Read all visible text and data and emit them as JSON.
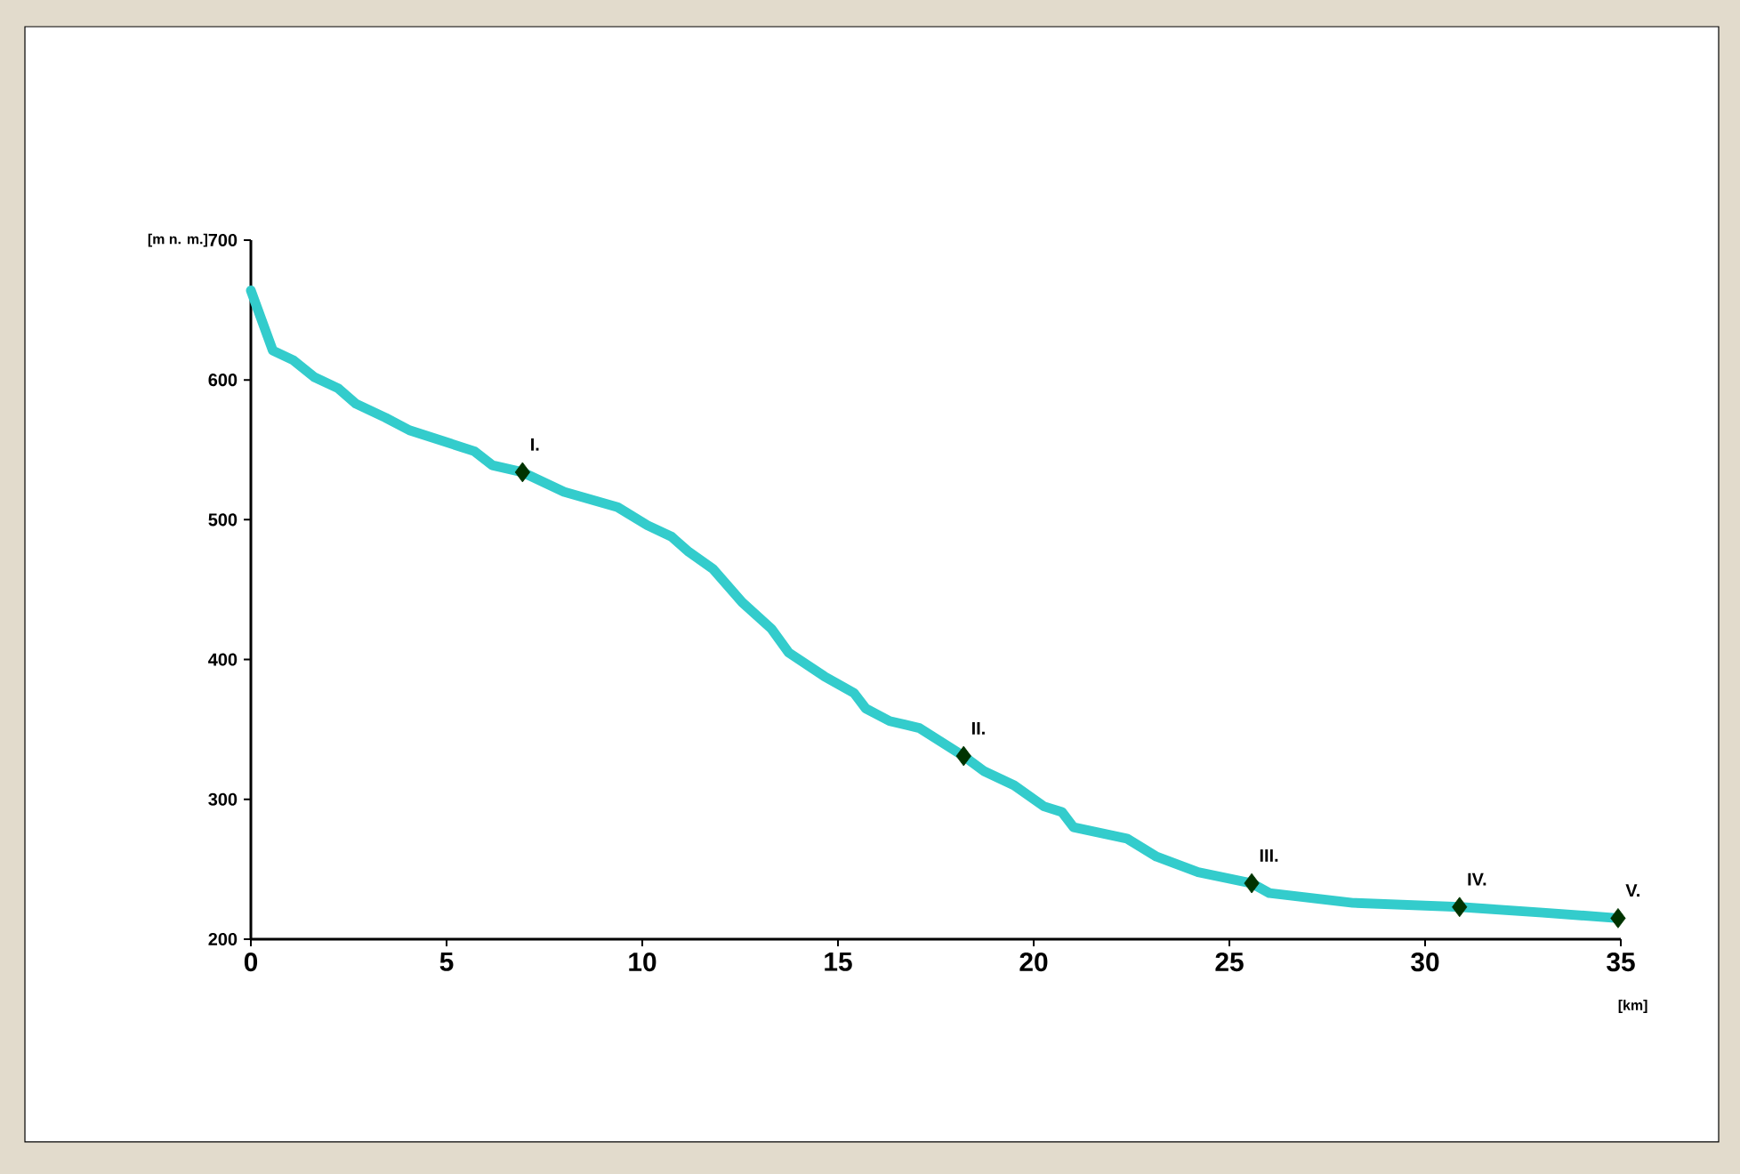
{
  "chart_data": {
    "type": "line",
    "xlabel": "[km]",
    "ylabel": "[m n. m.]",
    "xlim": [
      0,
      35
    ],
    "ylim": [
      200,
      700
    ],
    "xticks": [
      0,
      5,
      10,
      15,
      20,
      25,
      30,
      35
    ],
    "yticks": [
      200,
      300,
      400,
      500,
      600,
      700
    ],
    "grid": false,
    "series": [
      {
        "color": "#33cccc",
        "marker": "none",
        "x": [
          0,
          0.56,
          1.09,
          1.62,
          2.23,
          2.68,
          3.44,
          4.05,
          5.71,
          6.17,
          6.94,
          8.0,
          9.37,
          10.13,
          10.74,
          11.19,
          11.8,
          12.55,
          13.3,
          13.74,
          14.65,
          15.41,
          15.71,
          16.32,
          17.08,
          18.21,
          18.74,
          19.5,
          20.26,
          20.72,
          21.02,
          22.38,
          23.14,
          24.2,
          25.57,
          26.02,
          28.15,
          30.88,
          33.0,
          34.93
        ],
        "values": [
          664,
          621,
          614,
          602,
          594,
          583,
          573,
          564,
          549,
          539,
          534,
          520,
          509,
          496,
          488,
          477,
          465,
          441,
          422,
          405,
          388,
          376,
          365,
          356,
          351,
          331,
          320,
          310,
          295,
          291,
          280,
          272,
          259,
          248,
          240,
          233,
          226,
          223,
          219,
          215
        ]
      },
      {
        "type": "scatter",
        "color": "#003300",
        "marker": "diamond",
        "x": [
          6.94,
          18.21,
          25.57,
          30.88,
          34.93
        ],
        "values": [
          534,
          331,
          240,
          223,
          215
        ]
      }
    ],
    "annotations": [
      {
        "text": "I.",
        "x": 6.94,
        "y": 534
      },
      {
        "text": "II.",
        "x": 18.21,
        "y": 331
      },
      {
        "text": "III.",
        "x": 25.57,
        "y": 240
      },
      {
        "text": "IV.",
        "x": 30.88,
        "y": 223
      },
      {
        "text": "V.",
        "x": 34.93,
        "y": 215
      }
    ]
  }
}
